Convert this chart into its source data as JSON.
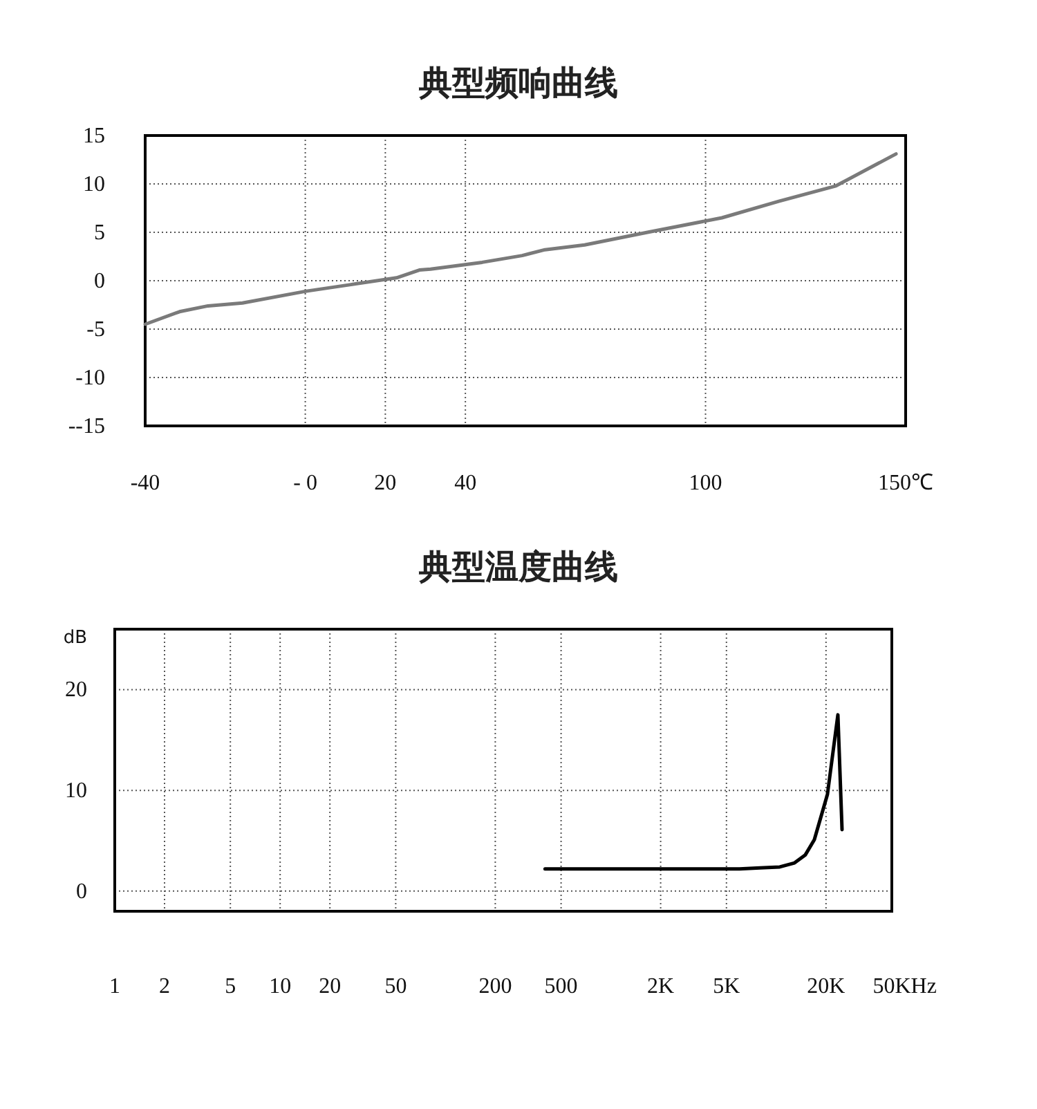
{
  "chart_data": [
    {
      "type": "line",
      "title": "典型频响曲线",
      "x": [
        -40,
        -31.4,
        -24.3,
        -15.7,
        0,
        11.4,
        22.8,
        28.5,
        31.3,
        44.2,
        54.2,
        59.9,
        69.8,
        85.5,
        104.1,
        118.3,
        132.6,
        147.6
      ],
      "series": [
        {
          "color": "#7a7a7a",
          "values": [
            -4.5,
            -3.2,
            -2.6,
            -2.3,
            -1.1,
            -0.4,
            0.3,
            1.1,
            1.2,
            1.9,
            2.6,
            3.2,
            3.7,
            5.0,
            6.5,
            8.2,
            9.8,
            13.1
          ]
        }
      ],
      "xlim": [
        -40,
        150
      ],
      "xticks": [
        -40,
        {
          "value": 0,
          "label": "- 0"
        },
        20,
        40,
        100,
        {
          "value": 150,
          "label": "150℃"
        }
      ],
      "ylim": [
        -15,
        15
      ],
      "yticks": [
        15,
        10,
        5,
        0,
        -5,
        -10,
        {
          "value": -15,
          "label": "--15"
        }
      ],
      "grid": true,
      "marker": "none",
      "line_style": "solid"
    },
    {
      "type": "line",
      "title": "典型温度曲线",
      "ylabel": "dB",
      "log": "x",
      "x": [
        400,
        1000,
        3000,
        6000,
        8000,
        10500,
        12900,
        15000,
        17000,
        20400,
        23600,
        25000
      ],
      "series": [
        {
          "color": "#000000",
          "values": [
            2.2,
            2.2,
            2.2,
            2.2,
            2.3,
            2.4,
            2.8,
            3.6,
            5.1,
            9.6,
            17.5,
            6.1
          ]
        }
      ],
      "xlim": [
        1,
        50000
      ],
      "xticks": [
        1,
        2,
        5,
        10,
        20,
        50,
        200,
        500,
        {
          "value": 2000,
          "label": "2K"
        },
        {
          "value": 5000,
          "label": "5K"
        },
        {
          "value": 20000,
          "label": "20K"
        },
        {
          "value": 50000,
          "label": "50K"
        }
      ],
      "xlabel": "Hz",
      "ylim": [
        -2,
        26
      ],
      "yticks": [
        0,
        10,
        20
      ],
      "grid": true,
      "marker": "none",
      "line_style": "solid"
    }
  ]
}
